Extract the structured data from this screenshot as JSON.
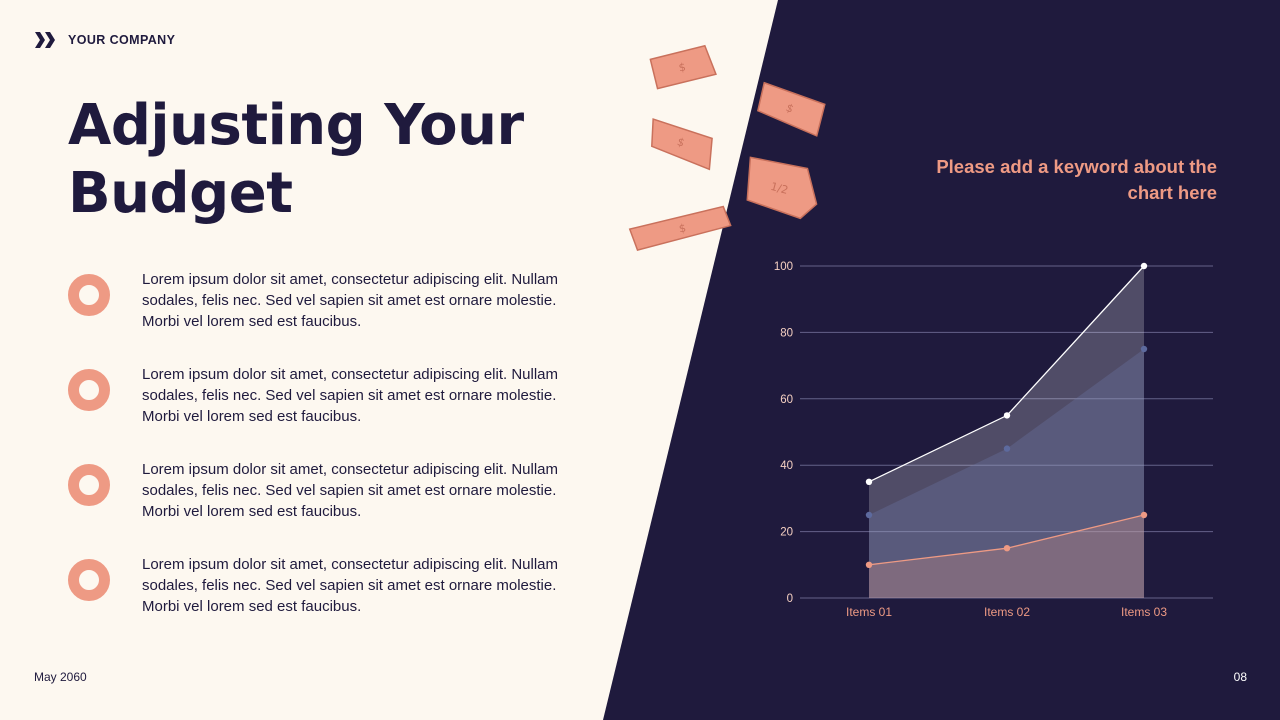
{
  "brand": {
    "name": "YOUR COMPANY",
    "icon": "chevrons-right-icon"
  },
  "title": "Adjusting Your Budget",
  "bullets": [
    {
      "text": "Lorem ipsum dolor sit amet, consectetur adipiscing elit. Nullam sodales, felis nec. Sed vel sapien sit amet est ornare molestie. Morbi vel lorem sed est faucibus."
    },
    {
      "text": "Lorem ipsum dolor sit amet, consectetur adipiscing elit. Nullam sodales, felis nec. Sed vel sapien sit amet est ornare molestie. Morbi vel lorem sed est faucibus."
    },
    {
      "text": "Lorem ipsum dolor sit amet, consectetur adipiscing elit. Nullam sodales, felis nec. Sed vel sapien sit amet est ornare molestie. Morbi vel lorem sed est faucibus."
    },
    {
      "text": "Lorem ipsum dolor sit amet, consectetur adipiscing elit. Nullam sodales, felis nec. Sed vel sapien sit amet est ornare molestie. Morbi vel lorem sed est faucibus."
    }
  ],
  "keyword": "Please add a keyword about the chart here",
  "footer": {
    "date": "May 2060",
    "page": "08"
  },
  "colors": {
    "dark": "#1F1A3D",
    "cream": "#FDF8F0",
    "accent": "#EE9A84",
    "series_blue": "#5D6A9E"
  },
  "chart_data": {
    "type": "area",
    "categories": [
      "Items 01",
      "Items 02",
      "Items 03"
    ],
    "series": [
      {
        "values": [
          35,
          55,
          100
        ],
        "color": "#FFFFFF"
      },
      {
        "values": [
          25,
          45,
          75
        ],
        "color": "#5D6A9E"
      },
      {
        "values": [
          10,
          15,
          25
        ],
        "color": "#EE9A84"
      }
    ],
    "ylim": [
      0,
      100
    ],
    "yticks": [
      0,
      20,
      40,
      60,
      80,
      100
    ],
    "grid": true
  }
}
